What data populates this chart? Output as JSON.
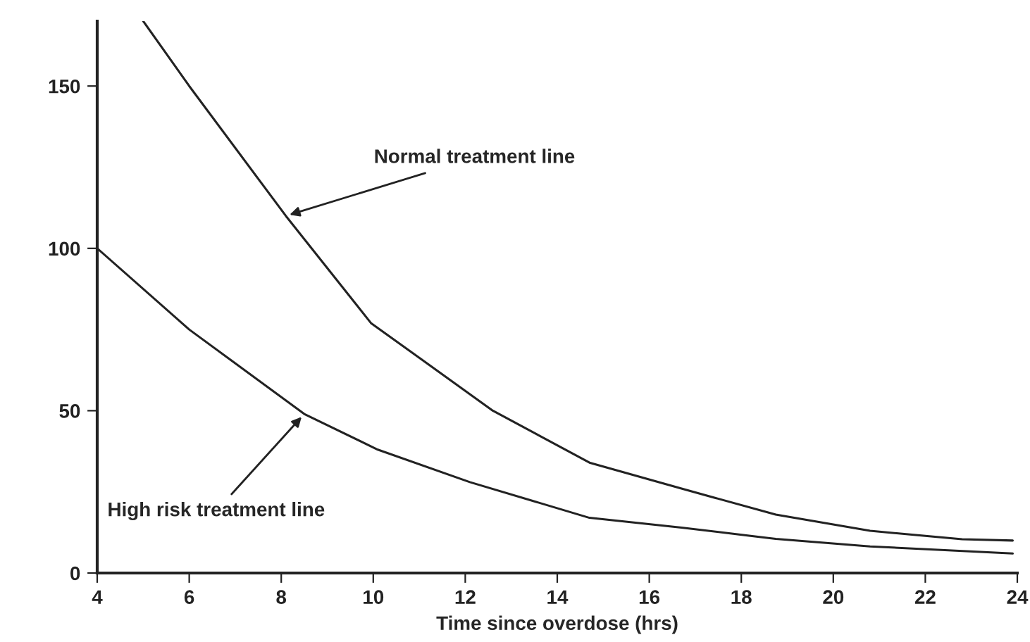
{
  "chart_data": {
    "type": "line",
    "xlabel": "Time since overdose (hrs)",
    "xlim": [
      4,
      24
    ],
    "xticks": [
      4,
      6,
      8,
      10,
      12,
      14,
      16,
      18,
      20,
      22,
      24
    ],
    "ylim": [
      0,
      170
    ],
    "yticks": [
      0,
      50,
      100,
      150
    ],
    "grid": false,
    "marker": "none",
    "line_style": "solid",
    "series": [
      {
        "color": "#222222",
        "x": [
          5.0,
          6.0,
          8.1,
          9.95,
          12.6,
          14.7,
          16.7,
          18.75,
          20.8,
          22.8,
          23.9
        ],
        "values": [
          170,
          150,
          110,
          77,
          50,
          34,
          26,
          18,
          13,
          10.4,
          10
        ]
      },
      {
        "color": "#222222",
        "x": [
          4.0,
          6.0,
          8.5,
          10.1,
          12.1,
          14.7,
          16.7,
          18.75,
          20.8,
          23.9
        ],
        "values": [
          100,
          75,
          49,
          38,
          28,
          17,
          14,
          10.5,
          8.2,
          6
        ]
      }
    ],
    "annotations": [
      {
        "text": "Normal treatment line",
        "x": 8.1,
        "y": 110
      },
      {
        "text": "High risk treatment line",
        "x": 8.5,
        "y": 49
      }
    ]
  }
}
